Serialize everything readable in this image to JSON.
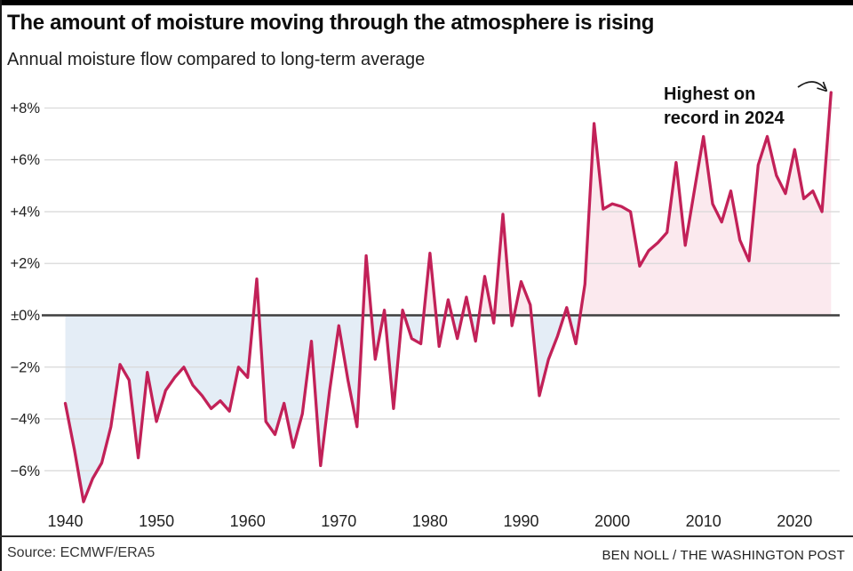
{
  "title": "The amount of moisture moving through the atmosphere is rising",
  "subtitle": "Annual moisture flow compared to long-term average",
  "annotation": {
    "line1": "Highest on",
    "line2": "record in 2024"
  },
  "footer": {
    "source": "Source: ECMWF/ERA5",
    "credit": "BEN NOLL / THE WASHINGTON POST"
  },
  "colors": {
    "line": "#c22158",
    "positive_fill": "#fbe9ee",
    "negative_fill": "#e4edf6",
    "grid": "#d8d8d8",
    "zero_line": "#3f3f3f",
    "text": "#222222",
    "annotation_arrow": "#1a1a1a",
    "top_bar": "#000000"
  },
  "chart_data": {
    "type": "area",
    "title": "Annual moisture flow compared to long-term average",
    "unit": "%",
    "baseline": 0,
    "grid": true,
    "start_year": 1940,
    "end_year": 2024,
    "values": [
      -3.4,
      -5.2,
      -7.2,
      -6.3,
      -5.7,
      -4.3,
      -1.9,
      -2.5,
      -5.5,
      -2.2,
      -4.1,
      -2.9,
      -2.4,
      -2.0,
      -2.7,
      -3.1,
      -3.6,
      -3.3,
      -3.7,
      -2.0,
      -2.4,
      1.4,
      -4.1,
      -4.6,
      -3.4,
      -5.1,
      -3.8,
      -1.0,
      -5.8,
      -2.9,
      -0.4,
      -2.5,
      -4.3,
      2.3,
      -1.7,
      0.2,
      -3.6,
      0.2,
      -0.9,
      -1.1,
      2.4,
      -1.2,
      0.6,
      -0.9,
      0.7,
      -1.0,
      1.5,
      -0.3,
      3.9,
      -0.4,
      1.3,
      0.4,
      -3.1,
      -1.7,
      -0.8,
      0.3,
      -1.1,
      1.2,
      7.4,
      4.1,
      4.3,
      4.2,
      4.0,
      1.9,
      2.5,
      2.8,
      3.2,
      5.9,
      2.7,
      4.8,
      6.9,
      4.3,
      3.6,
      4.8,
      2.9,
      2.1,
      5.8,
      6.9,
      5.4,
      4.7,
      6.4,
      4.5,
      4.8,
      4.0,
      8.6
    ],
    "highest_on_record": {
      "year": 2024,
      "value": 8.6
    },
    "y_ticks": [
      {
        "label": "+8%",
        "value": 8
      },
      {
        "label": "+6%",
        "value": 6
      },
      {
        "label": "+4%",
        "value": 4
      },
      {
        "label": "+2%",
        "value": 2
      },
      {
        "label": "±0%",
        "value": 0
      },
      {
        "label": "−2%",
        "value": -2
      },
      {
        "label": "−4%",
        "value": -4
      },
      {
        "label": "−6%",
        "value": -6
      }
    ],
    "x_ticks": [
      1940,
      1950,
      1960,
      1970,
      1980,
      1990,
      2000,
      2010,
      2020
    ],
    "ylim": [
      -7.6,
      9.2
    ]
  }
}
